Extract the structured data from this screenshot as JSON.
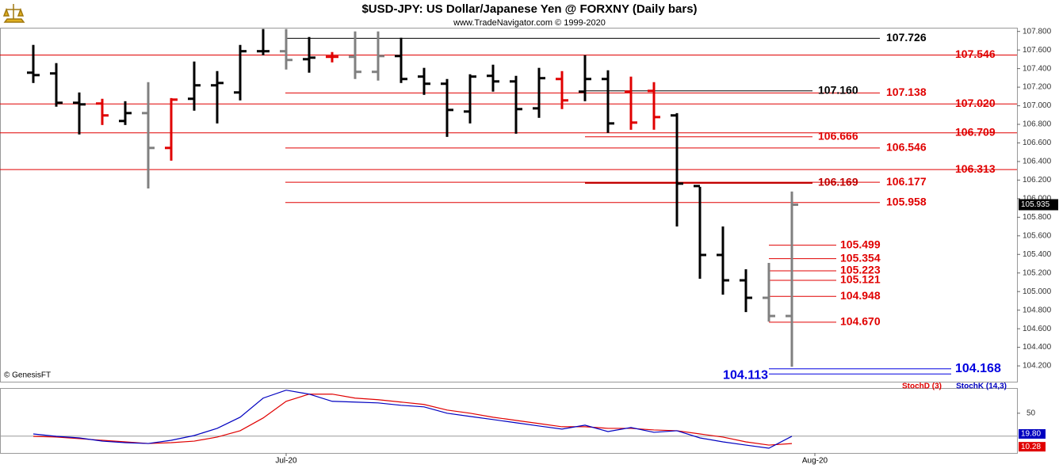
{
  "chart_data": [
    {
      "type": "ohlc",
      "title": "$USD-JPY:  US Dollar/Japanese Yen @ FORXNY  (Daily bars)",
      "subtitle": "www.TradeNavigator.com © 1999-2020",
      "note": "© GenesisFT",
      "open": [
        107.356,
        107.348,
        107.032,
        107.024,
        106.836,
        106.921,
        106.546,
        107.075,
        107.22,
        107.143,
        107.587,
        107.587,
        107.501,
        107.527,
        107.527,
        107.365,
        107.535,
        107.314,
        107.237,
        106.938,
        107.322,
        107.262,
        106.972,
        107.288,
        107.152,
        107.288,
        107.152,
        107.16,
        106.896,
        106.136,
        105.394,
        105.121,
        104.933,
        104.737,
        null
      ],
      "high": [
        107.655,
        107.459,
        107.143,
        107.075,
        107.049,
        107.254,
        107.083,
        107.476,
        107.373,
        107.655,
        107.826,
        107.826,
        107.74,
        107.578,
        107.8,
        107.8,
        107.732,
        107.408,
        107.288,
        107.339,
        107.442,
        107.322,
        107.408,
        107.373,
        107.544,
        107.382,
        107.314,
        107.254,
        106.921,
        106.128,
        105.701,
        105.24,
        105.308,
        106.077,
        null
      ],
      "low": [
        107.245,
        106.99,
        106.691,
        106.793,
        106.793,
        106.11,
        106.409,
        106.947,
        106.81,
        107.058,
        107.544,
        107.39,
        107.356,
        107.467,
        107.288,
        107.271,
        107.245,
        107.117,
        106.665,
        106.81,
        107.152,
        106.699,
        106.87,
        106.964,
        107.049,
        106.708,
        106.742,
        106.742,
        105.701,
        105.138,
        104.967,
        104.779,
        104.677,
        104.191,
        null
      ],
      "close": [
        107.33,
        107.032,
        107.015,
        106.896,
        106.921,
        106.546,
        107.066,
        107.22,
        107.245,
        107.587,
        107.587,
        107.493,
        107.518,
        107.527,
        107.365,
        107.535,
        107.288,
        107.237,
        106.955,
        107.314,
        107.262,
        106.964,
        107.297,
        107.058,
        107.288,
        106.81,
        106.819,
        106.878,
        106.162,
        105.394,
        105.121,
        104.933,
        104.737,
        105.935,
        null
      ],
      "colors": [
        "#000000",
        "#000000",
        "#000000",
        "#e00000",
        "#000000",
        "#808080",
        "#e00000",
        "#000000",
        "#000000",
        "#000000",
        "#000000",
        "#808080",
        "#000000",
        "#e00000",
        "#808080",
        "#808080",
        "#000000",
        "#000000",
        "#000000",
        "#000000",
        "#000000",
        "#000000",
        "#000000",
        "#e00000",
        "#000000",
        "#000000",
        "#e00000",
        "#e00000",
        "#000000",
        "#000000",
        "#000000",
        "#000000",
        "#808080",
        "#808080",
        null
      ],
      "ylim": [
        104.03,
        107.84
      ],
      "yticks": [
        {
          "value": 104.2,
          "label": "104.200"
        },
        {
          "value": 104.4,
          "label": "104.400"
        },
        {
          "value": 104.6,
          "label": "104.600"
        },
        {
          "value": 104.8,
          "label": "104.800"
        },
        {
          "value": 105.0,
          "label": "105.000"
        },
        {
          "value": 105.2,
          "label": "105.200"
        },
        {
          "value": 105.4,
          "label": "105.400"
        },
        {
          "value": 105.6,
          "label": "105.600"
        },
        {
          "value": 105.8,
          "label": "105.800"
        },
        {
          "value": 106.0,
          "label": "106.000"
        },
        {
          "value": 106.2,
          "label": "106.200"
        },
        {
          "value": 106.4,
          "label": "106.400"
        },
        {
          "value": 106.6,
          "label": "106.600"
        },
        {
          "value": 106.8,
          "label": "106.800"
        },
        {
          "value": 107.0,
          "label": "107.000"
        },
        {
          "value": 107.2,
          "label": "107.200"
        },
        {
          "value": 107.4,
          "label": "107.400"
        },
        {
          "value": 107.6,
          "label": "107.600"
        },
        {
          "value": 107.8,
          "label": "107.800"
        }
      ],
      "levels": [
        {
          "values": [
            107.546,
            107.02,
            106.709,
            106.313
          ],
          "value_labels": [
            "107.546",
            "107.020",
            "106.709",
            "106.313"
          ],
          "colors": [
            "#e00000",
            "#e00000",
            "#e00000",
            "#e00000"
          ]
        },
        {
          "values": [
            107.726,
            107.138,
            106.546,
            106.177,
            105.958
          ],
          "value_labels": [
            "107.726",
            "107.138",
            "106.546",
            "106.177",
            "105.958"
          ],
          "colors": [
            "#000000",
            "#e00000",
            "#e00000",
            "#e00000",
            "#e00000"
          ]
        },
        {
          "values": [
            107.16,
            106.666,
            106.169
          ],
          "value_labels": [
            "107.160",
            "106.666",
            "106.169"
          ],
          "colors": [
            "#000000",
            "#e00000",
            "#c00000"
          ]
        },
        {
          "values": [
            105.499,
            105.354,
            105.223,
            105.121,
            104.948,
            104.67
          ],
          "value_labels": [
            "105.499",
            "105.354",
            "105.223",
            "105.121",
            "104.948",
            "104.670"
          ],
          "colors": [
            "#e00000",
            "#e00000",
            "#e00000",
            "#e00000",
            "#e00000",
            "#e00000"
          ]
        },
        {
          "values": [
            104.113,
            104.168
          ],
          "value_labels": [
            "104.113",
            "104.168"
          ],
          "colors": [
            "#0000e0",
            "#0000e0"
          ]
        }
      ]
    },
    {
      "type": "line",
      "categories": [
        null,
        null,
        null,
        null,
        null,
        null,
        null,
        null,
        null,
        null,
        null,
        "Jul-20",
        null,
        null,
        null,
        null,
        null,
        null,
        null,
        null,
        null,
        null,
        null,
        null,
        null,
        null,
        null,
        null,
        null,
        null,
        null,
        null,
        null,
        null,
        "Aug-20"
      ],
      "series": [
        {
          "name": "StochD (3)",
          "color": "#e00000",
          "last_label": "10.28",
          "values": [
            19.8,
            18.8,
            16.7,
            14.6,
            12.5,
            10.4,
            11.5,
            13.5,
            18.8,
            27.1,
            43.8,
            65.6,
            75.0,
            75.0,
            69.8,
            67.7,
            64.6,
            61.5,
            54.2,
            50.0,
            44.8,
            40.6,
            36.5,
            32.3,
            32.3,
            30.2,
            30.2,
            28.1,
            27.1,
            22.9,
            18.8,
            12.5,
            8.3,
            10.28,
            null
          ]
        },
        {
          "name": "StochK (14,3)",
          "color": "#0000c0",
          "last_label": "19.80",
          "values": [
            22.9,
            19.8,
            17.7,
            13.5,
            11.5,
            10.4,
            14.6,
            20.8,
            30.2,
            44.8,
            69.8,
            80.2,
            75.0,
            65.6,
            64.6,
            63.5,
            60.4,
            58.3,
            50.0,
            45.8,
            41.7,
            37.5,
            33.3,
            29.2,
            34.4,
            26.0,
            31.3,
            25.0,
            27.1,
            17.7,
            12.5,
            8.3,
            4.2,
            19.8,
            null
          ]
        }
      ],
      "ylim": [
        -2,
        83
      ],
      "yticks": [
        50
      ],
      "ref_lines": [
        20
      ]
    }
  ]
}
